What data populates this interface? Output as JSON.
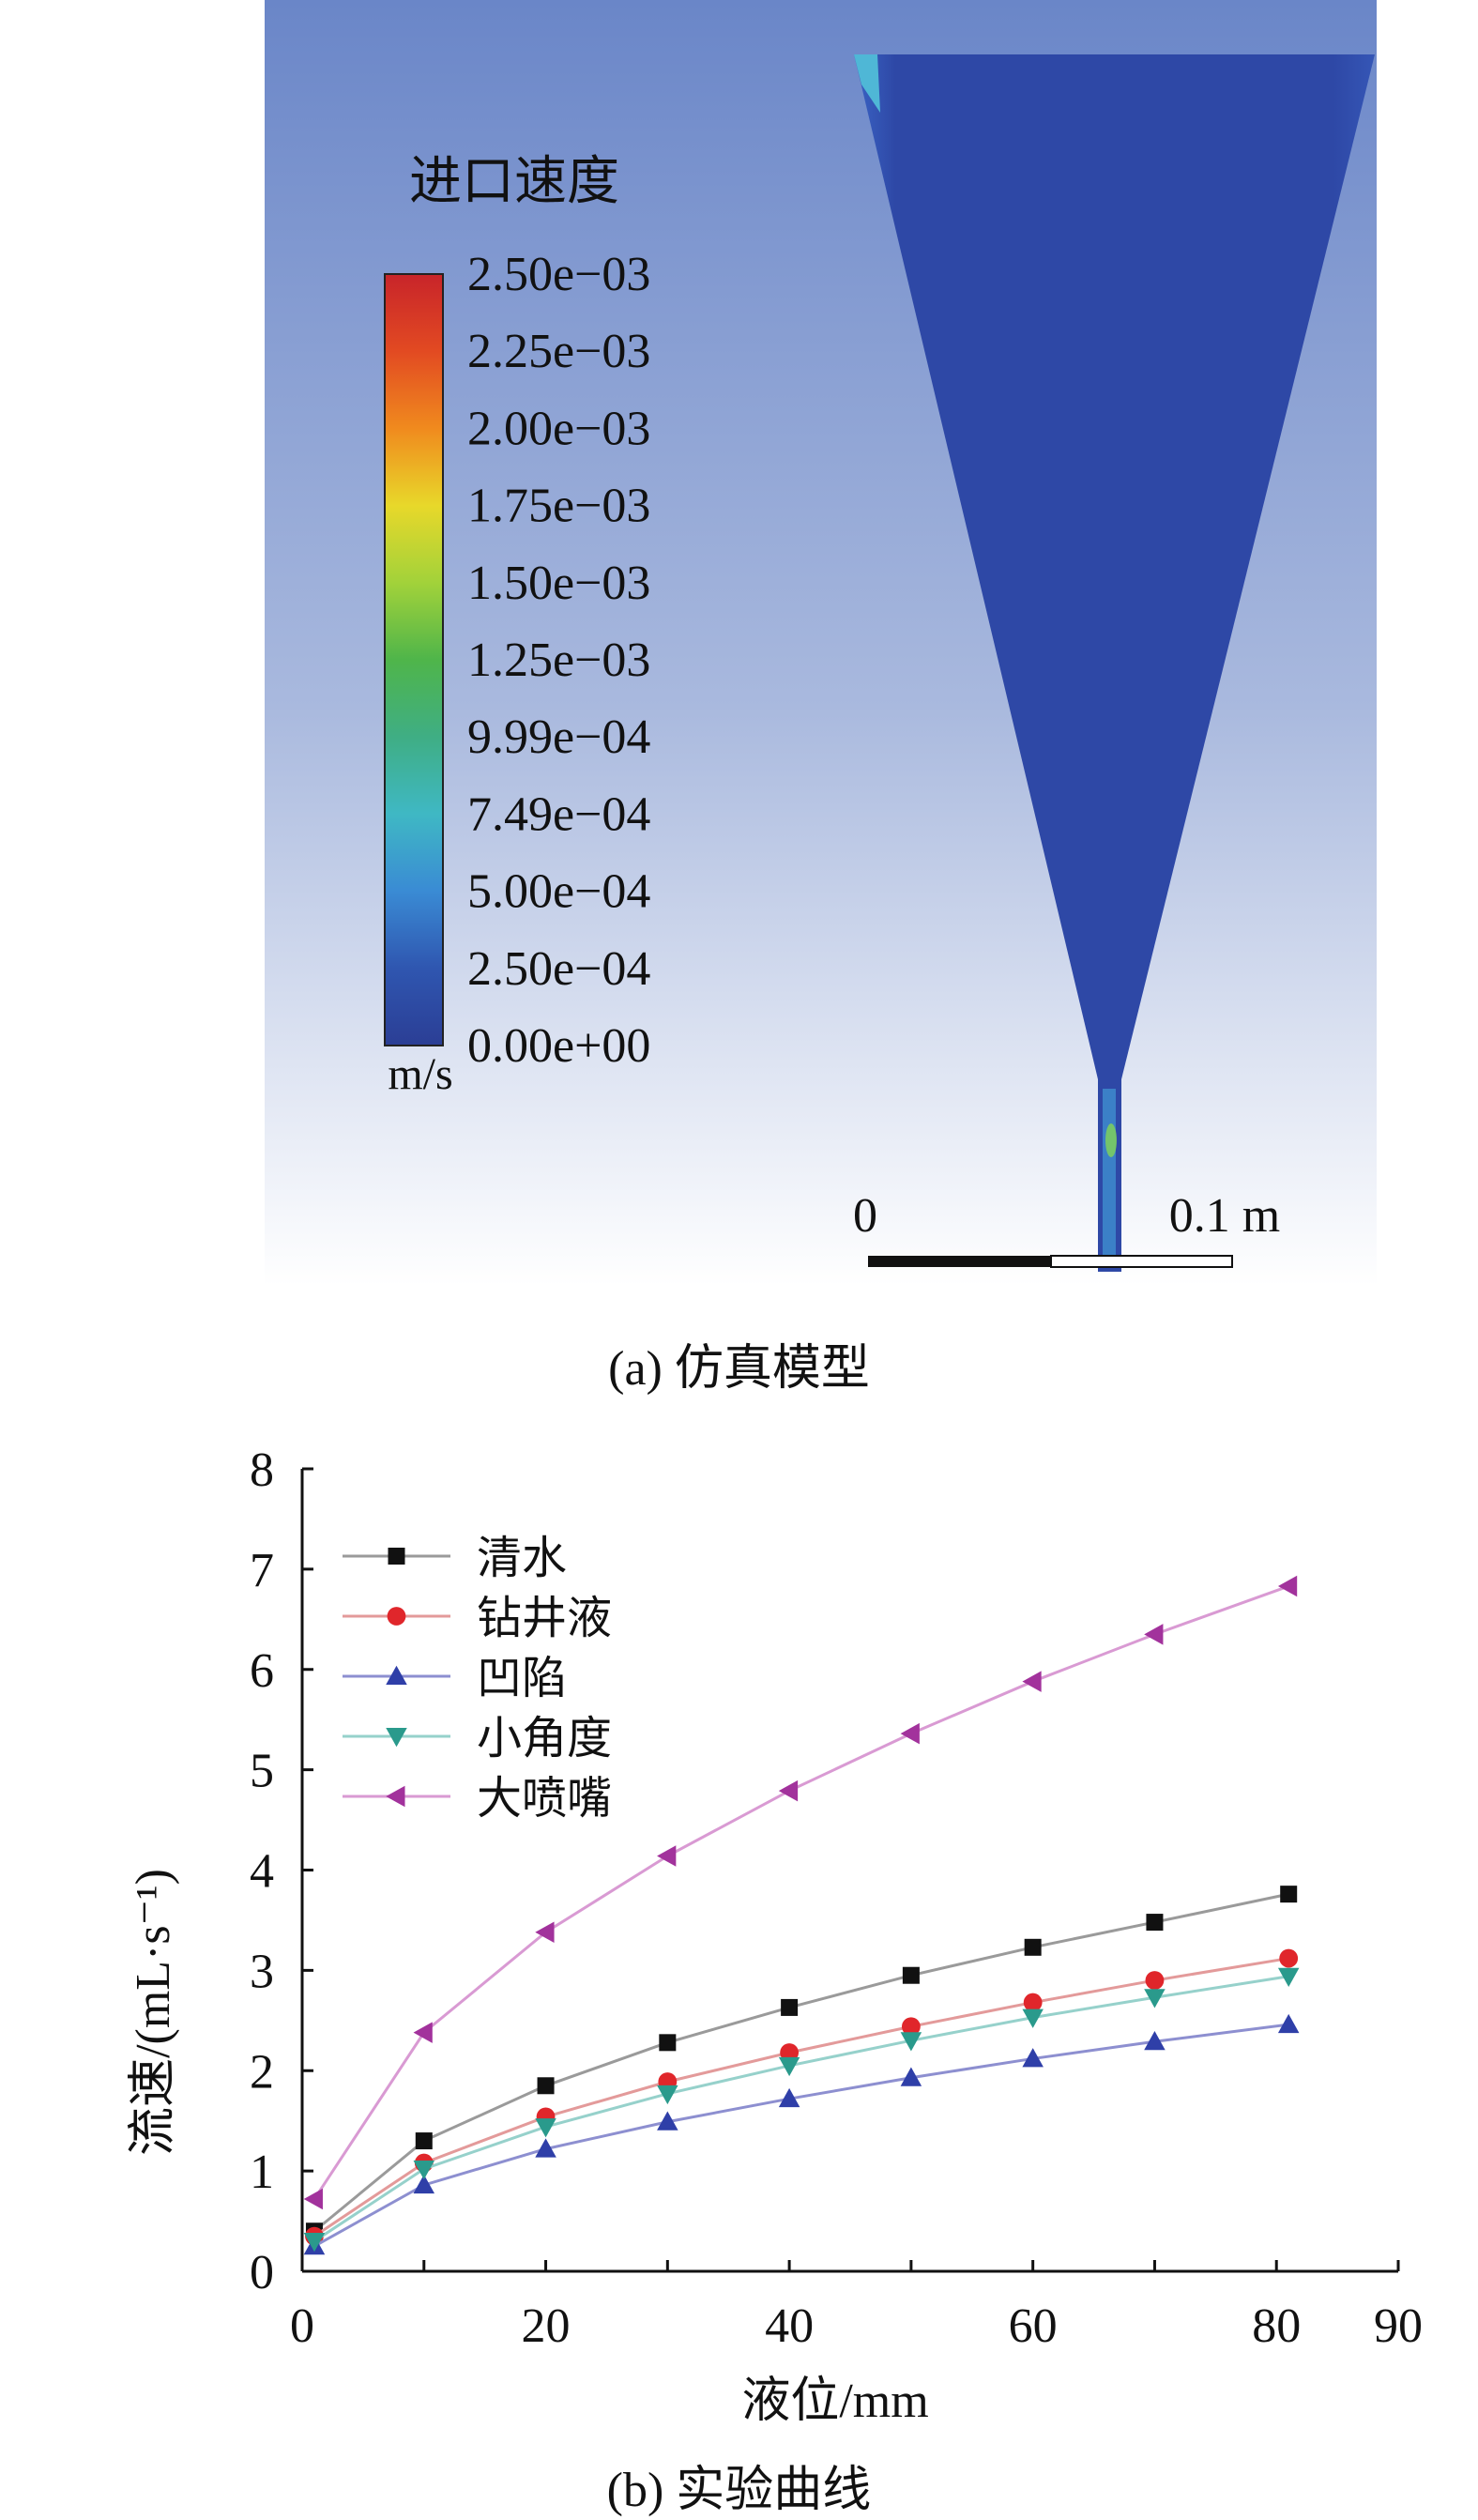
{
  "panel_a": {
    "caption": "(a) 仿真模型",
    "legend_title": "进口速度",
    "unit": "m/s",
    "colorbar_labels": [
      "2.50e−03",
      "2.25e−03",
      "2.00e−03",
      "1.75e−03",
      "1.50e−03",
      "1.25e−03",
      "9.99e−04",
      "7.49e−04",
      "5.00e−04",
      "2.50e−04",
      "0.00e+00"
    ],
    "colorbar_stops": [
      "#c8242a",
      "#e24a22",
      "#f08a1e",
      "#e8d82a",
      "#a2d23a",
      "#4fb54a",
      "#3fae84",
      "#3fb8c4",
      "#3a8bd4",
      "#2f56b0",
      "#2b3e95"
    ],
    "scalebar": {
      "start_label": "0",
      "end_label": "0.1 m"
    },
    "colors": {
      "domain_fill": "#2e48a6",
      "bg_top": "#6a86c8",
      "bg_bottom": "#ffffff"
    }
  },
  "panel_b": {
    "caption": "(b) 实验曲线"
  },
  "chart_data": {
    "type": "line",
    "xlabel": "液位/mm",
    "ylabel": "流速/(mL·s⁻¹)",
    "xlim": [
      0,
      90
    ],
    "ylim": [
      0,
      8
    ],
    "xticks": [
      0,
      10,
      20,
      30,
      40,
      50,
      60,
      70,
      80,
      90
    ],
    "yticks": [
      0,
      1,
      2,
      3,
      4,
      5,
      6,
      7,
      8
    ],
    "xtick_labels": [
      "0",
      "",
      "20",
      "",
      "40",
      "",
      "60",
      "",
      "80",
      "90"
    ],
    "ytick_labels": [
      "0",
      "1",
      "2",
      "3",
      "4",
      "5",
      "6",
      "7",
      "8"
    ],
    "grid": false,
    "legend": "top-left",
    "x": [
      1,
      10,
      20,
      30,
      40,
      50,
      60,
      70,
      81
    ],
    "series": [
      {
        "name": "清水",
        "marker": "square",
        "color": "#111111",
        "line": "#9a9a9a",
        "values": [
          0.4,
          1.3,
          1.85,
          2.28,
          2.63,
          2.95,
          3.23,
          3.48,
          3.76
        ]
      },
      {
        "name": "钻井液",
        "marker": "circle",
        "color": "#e0262b",
        "line": "#e39a9a",
        "values": [
          0.35,
          1.08,
          1.54,
          1.89,
          2.18,
          2.44,
          2.68,
          2.9,
          3.12
        ]
      },
      {
        "name": "凹陷",
        "marker": "triangle-up",
        "color": "#2f3fa8",
        "line": "#8d8fd0",
        "values": [
          0.25,
          0.86,
          1.22,
          1.49,
          1.72,
          1.93,
          2.12,
          2.29,
          2.46
        ]
      },
      {
        "name": "小角度",
        "marker": "triangle-down",
        "color": "#2a9a8c",
        "line": "#96d1cb",
        "values": [
          0.3,
          1.02,
          1.44,
          1.77,
          2.05,
          2.3,
          2.53,
          2.73,
          2.94
        ]
      },
      {
        "name": "大喷嘴",
        "marker": "triangle-left",
        "color": "#a2329c",
        "line": "#d99ad3",
        "values": [
          0.72,
          2.38,
          3.38,
          4.14,
          4.79,
          5.36,
          5.88,
          6.35,
          6.83
        ]
      }
    ]
  }
}
